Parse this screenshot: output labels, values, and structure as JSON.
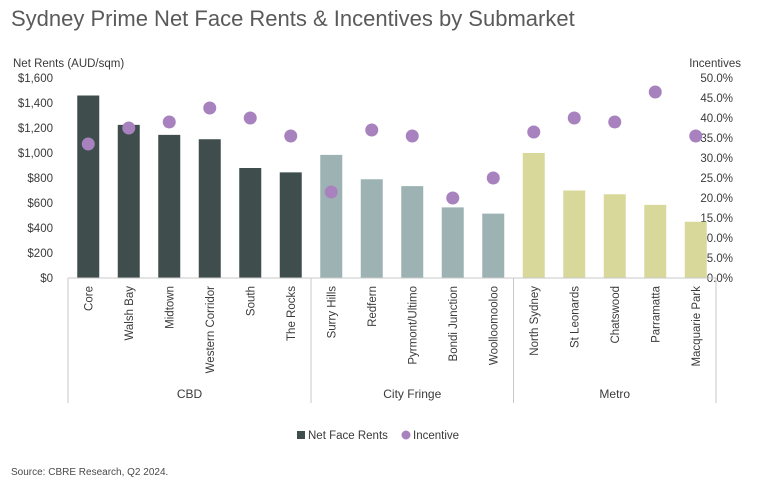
{
  "title": "Sydney Prime Net Face Rents & Incentives by Submarket",
  "source": "Source: CBRE Research, Q2 2024.",
  "colors": {
    "cbd": "#3f4d4d",
    "city_fringe": "#9db3b3",
    "metro": "#d9d89b",
    "incentive": "#a882bf",
    "axis": "#c8c8c8"
  },
  "chart_data": {
    "type": "bar",
    "title": "Sydney Prime Net Face Rents & Incentives by Submarket",
    "ylabel": "Net Rents (AUD/sqm)",
    "y2label": "Incentives",
    "ylim": [
      0,
      1600
    ],
    "y2lim": [
      0,
      0.5
    ],
    "y_ticks": [
      "$0",
      "$200",
      "$400",
      "$600",
      "$800",
      "$1,000",
      "$1,200",
      "$1,400",
      "$1,600"
    ],
    "y2_ticks": [
      "0.0%",
      "5.0%",
      "10.0%",
      "15.0%",
      "20.0%",
      "25.0%",
      "30.0%",
      "35.0%",
      "40.0%",
      "45.0%",
      "50.0%"
    ],
    "grid": false,
    "legend_position": "bottom",
    "groups": [
      {
        "name": "CBD",
        "color": "#3f4d4d",
        "categories": [
          "Core",
          "Walsh Bay",
          "Midtown",
          "Western Corridor",
          "South",
          "The Rocks"
        ]
      },
      {
        "name": "City Fringe",
        "color": "#9db3b3",
        "categories": [
          "Surry Hills",
          "Redfern",
          "Pyrmont/Ultimo",
          "Bondi Junction",
          "Woolloomooloo"
        ]
      },
      {
        "name": "Metro",
        "color": "#d9d89b",
        "categories": [
          "North Sydney",
          "St Leonards",
          "Chatswood",
          "Parramatta",
          "Macquarie Park"
        ]
      }
    ],
    "categories": [
      "Core",
      "Walsh Bay",
      "Midtown",
      "Western Corridor",
      "South",
      "The Rocks",
      "Surry Hills",
      "Redfern",
      "Pyrmont/Ultimo",
      "Bondi Junction",
      "Woolloomooloo",
      "North Sydney",
      "St Leonards",
      "Chatswood",
      "Parramatta",
      "Macquarie Park"
    ],
    "series": [
      {
        "name": "Net Face Rents",
        "axis": "left",
        "type": "bar",
        "values": [
          1460,
          1225,
          1145,
          1110,
          880,
          845,
          985,
          790,
          735,
          565,
          515,
          1000,
          700,
          670,
          585,
          450
        ]
      },
      {
        "name": "Incentive",
        "axis": "right",
        "type": "scatter",
        "values": [
          0.335,
          0.375,
          0.39,
          0.425,
          0.4,
          0.355,
          0.215,
          0.37,
          0.355,
          0.2,
          0.25,
          0.365,
          0.4,
          0.39,
          0.465,
          0.355
        ]
      }
    ]
  }
}
